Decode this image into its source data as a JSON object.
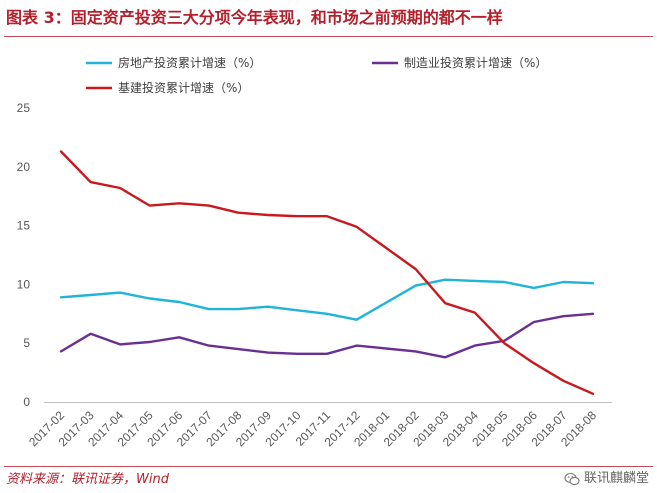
{
  "header": {
    "title": "图表 3：固定资产投资三大分项今年表现，和市场之前预期的都不一样"
  },
  "footer": {
    "source": "资料来源：联讯证券，Wind",
    "watermark": "联讯麒麟堂",
    "watermark_icon": "wechat-icon"
  },
  "chart_data": {
    "type": "line",
    "title": "",
    "xlabel": "",
    "ylabel": "",
    "ylim": [
      0,
      25
    ],
    "yticks": [
      0,
      5,
      10,
      15,
      20,
      25
    ],
    "grid": false,
    "legend_position": "top",
    "categories": [
      "2017-02",
      "2017-03",
      "2017-04",
      "2017-05",
      "2017-06",
      "2017-07",
      "2017-08",
      "2017-09",
      "2017-10",
      "2017-11",
      "2017-12",
      "2018-01",
      "2018-02",
      "2018-03",
      "2018-04",
      "2018-05",
      "2018-06",
      "2018-07",
      "2018-08"
    ],
    "series": [
      {
        "name": "房地产投资累计增速（%）",
        "color": "#1fb4d8",
        "values": [
          8.9,
          9.1,
          9.3,
          8.8,
          8.5,
          7.9,
          7.9,
          8.1,
          7.8,
          7.5,
          7.0,
          null,
          9.9,
          10.4,
          10.3,
          10.2,
          9.7,
          10.2,
          10.1
        ]
      },
      {
        "name": "制造业投资累计增速（%）",
        "color": "#6a2f92",
        "values": [
          4.3,
          5.8,
          4.9,
          5.1,
          5.5,
          4.8,
          4.5,
          4.2,
          4.1,
          4.1,
          4.8,
          null,
          4.3,
          3.8,
          4.8,
          5.2,
          6.8,
          7.3,
          7.5
        ]
      },
      {
        "name": "基建投资累计增速（%）",
        "color": "#c8191f",
        "values": [
          21.3,
          18.7,
          18.2,
          16.7,
          16.9,
          16.7,
          16.1,
          15.9,
          15.8,
          15.8,
          14.9,
          null,
          11.3,
          8.4,
          7.6,
          5.0,
          3.3,
          1.8,
          0.7
        ]
      }
    ]
  }
}
